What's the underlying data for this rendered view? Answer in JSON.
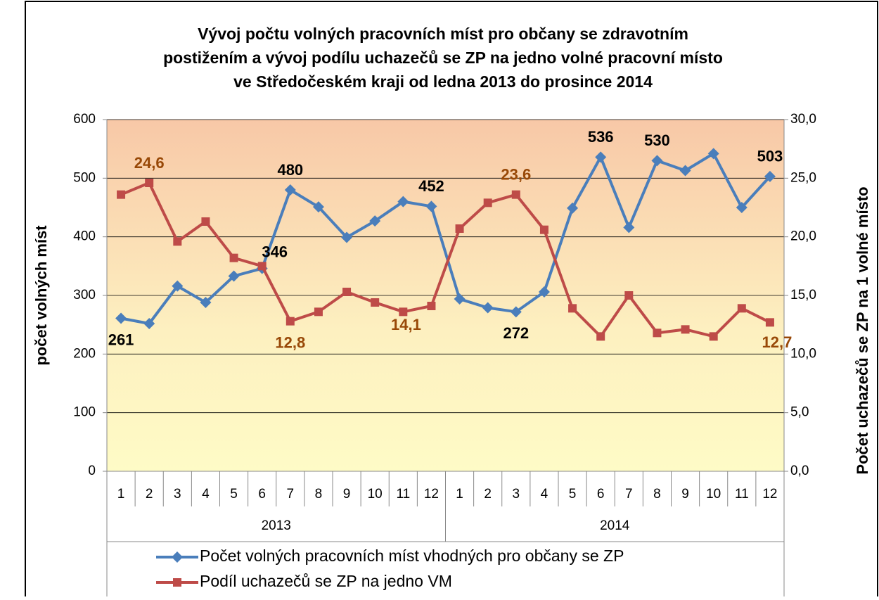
{
  "chart_data": {
    "type": "line",
    "title": [
      "Vývoj počtu volných pracovních míst pro občany se zdravotním",
      "postižením a vývoj podílu uchazečů se ZP na jedno volné pracovní místo",
      "ve Středočeském kraji od ledna 2013 do prosince 2014"
    ],
    "categories": [
      "1",
      "2",
      "3",
      "4",
      "5",
      "6",
      "7",
      "8",
      "9",
      "10",
      "11",
      "12",
      "1",
      "2",
      "3",
      "4",
      "5",
      "6",
      "7",
      "8",
      "9",
      "10",
      "11",
      "12"
    ],
    "category_groups": [
      "2013",
      "2014"
    ],
    "y_label": "počet volných míst",
    "y2_label": "Počet  uchazečů se ZP na 1 volné místo",
    "ylim": [
      0,
      600
    ],
    "yticks": [
      0,
      100,
      200,
      300,
      400,
      500,
      600
    ],
    "y2lim": [
      0,
      30
    ],
    "y2ticks": [
      {
        "value": 0,
        "label": "0,0"
      },
      {
        "value": 5,
        "label": "5,0"
      },
      {
        "value": 10,
        "label": "10,0"
      },
      {
        "value": 15,
        "label": "15,0"
      },
      {
        "value": 20,
        "label": "20,0"
      },
      {
        "value": 25,
        "label": "25,0"
      },
      {
        "value": 30,
        "label": "30,0"
      }
    ],
    "grid": true,
    "series": [
      {
        "name": "Počet volných pracovních míst vhodných pro občany se ZP",
        "color": "#4a7ebb",
        "marker": "diamond",
        "values": [
          261,
          252,
          316,
          288,
          333,
          346,
          480,
          451,
          399,
          427,
          460,
          452,
          294,
          279,
          272,
          306,
          449,
          536,
          416,
          530,
          513,
          542,
          450,
          503
        ],
        "value_labels": [
          "261",
          null,
          null,
          null,
          null,
          "346",
          "480",
          null,
          null,
          null,
          null,
          "452",
          null,
          null,
          "272",
          null,
          null,
          "536",
          null,
          "530",
          null,
          null,
          null,
          "503"
        ]
      },
      {
        "name": "Podíl uchazečů se ZP na jedno VM",
        "color": "#be4b48",
        "marker": "square",
        "axis": "y2",
        "values": [
          23.6,
          24.6,
          19.6,
          21.3,
          18.2,
          17.5,
          12.8,
          13.6,
          15.3,
          14.4,
          13.6,
          14.1,
          20.7,
          22.9,
          23.6,
          20.6,
          13.9,
          11.5,
          15.0,
          11.8,
          12.1,
          11.5,
          13.9,
          12.7
        ],
        "value_labels": [
          null,
          "24,6",
          null,
          null,
          null,
          null,
          "12,8",
          null,
          null,
          null,
          null,
          "14,1",
          null,
          null,
          "23,6",
          null,
          null,
          null,
          null,
          null,
          null,
          null,
          null,
          "12,7"
        ]
      }
    ]
  }
}
